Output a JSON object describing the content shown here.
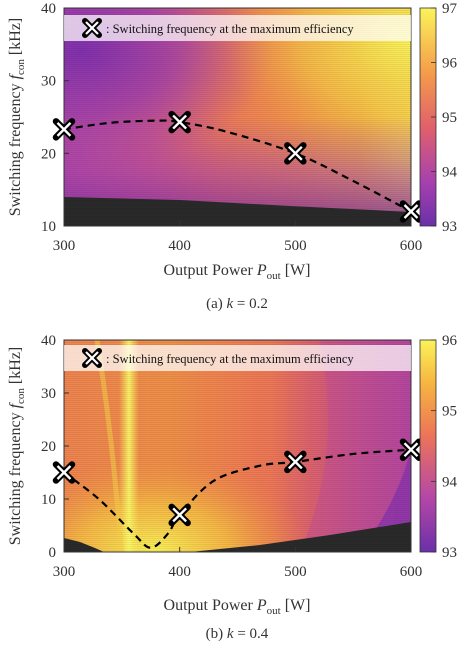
{
  "chart_data": [
    {
      "type": "heatmap",
      "caption": "(a) k = 0.2",
      "xlabel": "Output Power P_out [W]",
      "xlabel_main": "Output Power ",
      "xlabel_sym": "P",
      "xlabel_sub": "out",
      "xlabel_unit": " [W]",
      "ylabel_main": "Switching frequency ",
      "ylabel_sym": "f",
      "ylabel_sub": "con",
      "ylabel_unit": " [kHz]",
      "xlim": [
        300,
        600
      ],
      "ylim": [
        10,
        40
      ],
      "xticks": [
        "300",
        "400",
        "500",
        "600"
      ],
      "yticks": [
        "10",
        "20",
        "30",
        "40"
      ],
      "colorbar": {
        "min": 93,
        "max": 97,
        "ticks": [
          "93",
          "94",
          "95",
          "96",
          "97"
        ]
      },
      "legend": "Switching frequency at the maximum efficiency",
      "legend_prefix": ": ",
      "legend_position": "top",
      "markers": {
        "x": [
          300,
          400,
          500,
          600
        ],
        "y": [
          23.3,
          24.3,
          20.0,
          12.0
        ]
      },
      "curve": {
        "x": [
          300,
          340,
          380,
          400,
          440,
          500,
          550,
          600
        ],
        "y": [
          23.3,
          24.2,
          24.5,
          24.3,
          23.0,
          20.0,
          16.2,
          12.0
        ]
      }
    },
    {
      "type": "heatmap",
      "caption": "(b) k = 0.4",
      "xlabel": "Output Power P_out [W]",
      "xlabel_main": "Output Power ",
      "xlabel_sym": "P",
      "xlabel_sub": "out",
      "xlabel_unit": " [W]",
      "ylabel_main": "Switching frequency ",
      "ylabel_sym": "f",
      "ylabel_sub": "con",
      "ylabel_unit": " [kHz]",
      "xlim": [
        300,
        600
      ],
      "ylim": [
        0,
        40
      ],
      "xticks": [
        "300",
        "400",
        "500",
        "600"
      ],
      "yticks": [
        "0",
        "10",
        "20",
        "30",
        "40"
      ],
      "colorbar": {
        "min": 93,
        "max": 96,
        "ticks": [
          "93",
          "94",
          "95",
          "96"
        ]
      },
      "legend": "Switching frequency at the maximum efficiency",
      "legend_prefix": ": ",
      "legend_position": "top",
      "markers": {
        "x": [
          300,
          400,
          500,
          600
        ],
        "y": [
          15.0,
          7.0,
          17.0,
          19.3
        ]
      },
      "curve": {
        "x": [
          300,
          330,
          360,
          375,
          390,
          400,
          430,
          470,
          500,
          550,
          600
        ],
        "y": [
          15.0,
          10.0,
          3.5,
          0.8,
          3.5,
          7.0,
          13.5,
          16.3,
          17.0,
          18.5,
          19.3
        ]
      }
    }
  ],
  "captions": {
    "a_prefix": "(a) ",
    "a_k": "k",
    "a_value": " = 0.2",
    "b_prefix": "(b) ",
    "b_k": "k",
    "b_value": " = 0.4"
  }
}
